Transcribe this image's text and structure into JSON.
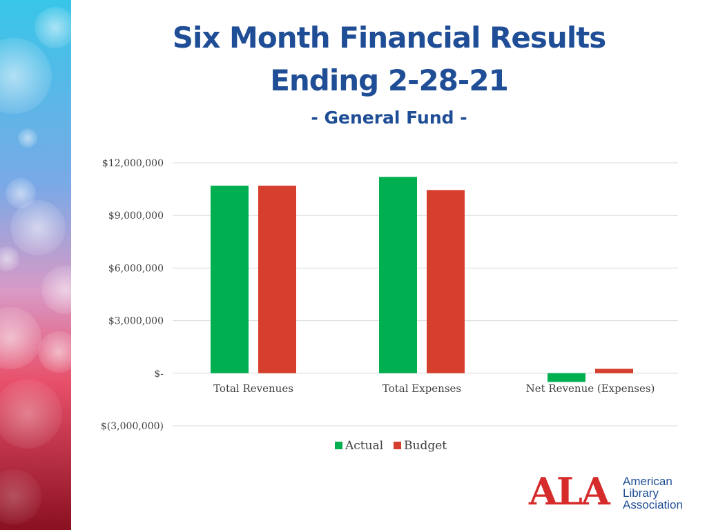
{
  "slide": {
    "title_line1": "Six Month Financial Results",
    "title_line2": "Ending 2-28-21",
    "subtitle": "- General Fund -"
  },
  "chart_data": {
    "type": "bar",
    "categories": [
      "Total Revenues",
      "Total Expenses",
      "Net Revenue (Expenses)"
    ],
    "series": [
      {
        "name": "Actual",
        "color": "#00b050",
        "values": [
          10700000,
          11200000,
          -500000
        ]
      },
      {
        "name": "Budget",
        "color": "#d63f2e",
        "values": [
          10700000,
          10450000,
          250000
        ]
      }
    ],
    "ylim": [
      -3000000,
      12000000
    ],
    "yticks": [
      12000000,
      9000000,
      6000000,
      3000000,
      0,
      -3000000
    ],
    "ytick_labels": [
      "$12,000,000",
      "$9,000,000",
      "$6,000,000",
      "$3,000,000",
      "$-",
      "$(3,000,000)"
    ],
    "grid": true,
    "legend_position": "bottom"
  },
  "logo": {
    "letters": "ALA",
    "line1": "American",
    "line2": "Library",
    "line3": "Association",
    "letter_color": "#d52b2b",
    "text_color": "#1f4e96"
  }
}
